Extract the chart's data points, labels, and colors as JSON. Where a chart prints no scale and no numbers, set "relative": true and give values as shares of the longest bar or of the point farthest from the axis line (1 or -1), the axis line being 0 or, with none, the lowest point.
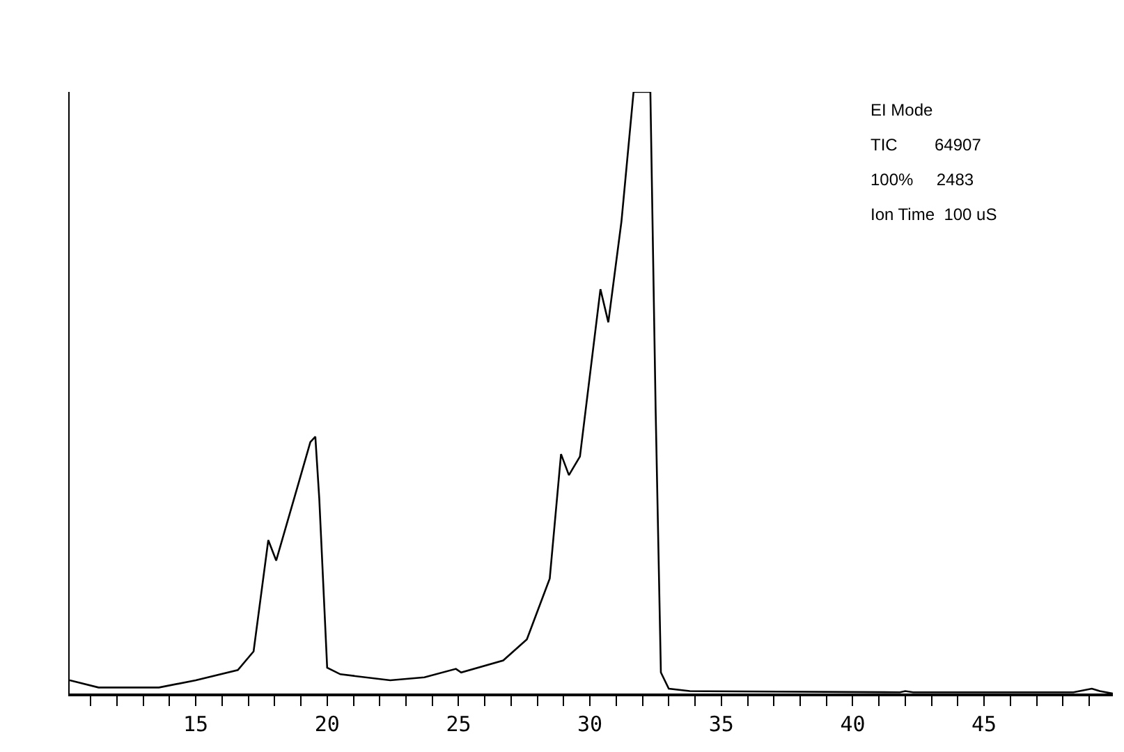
{
  "chart_data": {
    "type": "line",
    "relative": true,
    "color": "#000000",
    "x": [
      10.2,
      11.3,
      13.6,
      15.0,
      16.6,
      17.2,
      17.76,
      18.06,
      18.9,
      19.36,
      19.55,
      19.7,
      20.0,
      20.5,
      22.4,
      23.7,
      24.9,
      25.1,
      26.7,
      27.6,
      28.47,
      28.9,
      29.2,
      29.62,
      30.4,
      30.7,
      31.2,
      31.66,
      32.3,
      32.5,
      32.7,
      33.0,
      33.8,
      41.8,
      42.0,
      42.3,
      48.4,
      49.1,
      49.4,
      49.9
    ],
    "values": [
      0.022,
      0.01,
      0.01,
      0.022,
      0.039,
      0.07,
      0.255,
      0.221,
      0.348,
      0.418,
      0.427,
      0.324,
      0.043,
      0.032,
      0.022,
      0.027,
      0.041,
      0.035,
      0.055,
      0.09,
      0.191,
      0.398,
      0.363,
      0.394,
      0.672,
      0.617,
      0.785,
      1.0,
      1.0,
      0.473,
      0.035,
      0.008,
      0.004,
      0.002,
      0.004,
      0.002,
      0.002,
      0.008,
      0.004,
      0.0
    ],
    "xlim": [
      10.2,
      49.9
    ],
    "xticks": [
      {
        "value": 11,
        "label": null
      },
      {
        "value": 12,
        "label": null
      },
      {
        "value": 13,
        "label": null
      },
      {
        "value": 14,
        "label": null
      },
      15,
      {
        "value": 16,
        "label": null
      },
      {
        "value": 17,
        "label": null
      },
      {
        "value": 18,
        "label": null
      },
      {
        "value": 19,
        "label": null
      },
      20,
      {
        "value": 21,
        "label": null
      },
      {
        "value": 22,
        "label": null
      },
      {
        "value": 23,
        "label": null
      },
      {
        "value": 24,
        "label": null
      },
      25,
      {
        "value": 26,
        "label": null
      },
      {
        "value": 27,
        "label": null
      },
      {
        "value": 28,
        "label": null
      },
      {
        "value": 29,
        "label": null
      },
      30,
      {
        "value": 31,
        "label": null
      },
      {
        "value": 32,
        "label": null
      },
      {
        "value": 33,
        "label": null
      },
      {
        "value": 34,
        "label": null
      },
      35,
      {
        "value": 36,
        "label": null
      },
      {
        "value": 37,
        "label": null
      },
      {
        "value": 38,
        "label": null
      },
      {
        "value": 39,
        "label": null
      },
      40,
      {
        "value": 41,
        "label": null
      },
      {
        "value": 42,
        "label": null
      },
      {
        "value": 43,
        "label": null
      },
      {
        "value": 44,
        "label": null
      },
      45,
      {
        "value": 46,
        "label": null
      },
      {
        "value": 47,
        "label": null
      },
      {
        "value": 48,
        "label": null
      },
      {
        "value": 49,
        "label": null
      }
    ],
    "annotations": [
      "EI Mode",
      "TIC        64907",
      "100%     2483",
      "Ion Time  100 uS"
    ]
  }
}
